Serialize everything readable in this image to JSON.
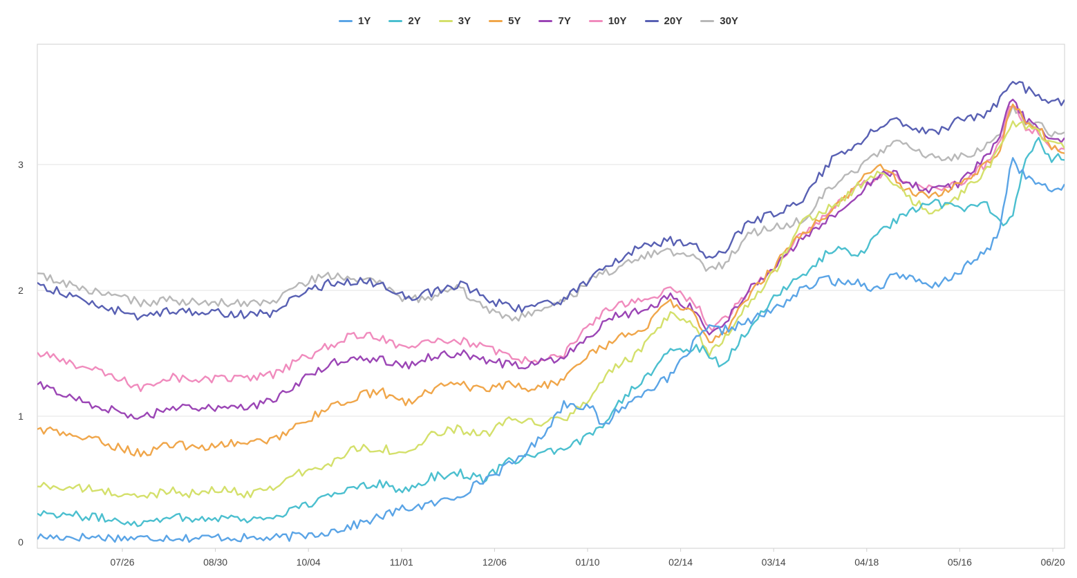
{
  "chart_data": {
    "type": "line",
    "x_ticks": [
      "07/26",
      "08/30",
      "10/04",
      "11/01",
      "12/06",
      "01/10",
      "02/14",
      "03/14",
      "04/18",
      "05/16",
      "06/20"
    ],
    "y_ticks": [
      "0",
      "1",
      "2",
      "3"
    ],
    "ylim": [
      0,
      3.9
    ],
    "grid": "horizontal",
    "legend_position": "top-center",
    "x_knots": [
      0,
      4,
      8,
      10,
      12,
      14,
      16,
      18,
      20,
      22,
      24,
      26,
      28,
      30,
      32,
      34,
      36,
      38,
      40,
      42,
      43,
      44,
      45,
      46,
      48,
      50,
      51,
      52,
      54,
      56,
      58,
      60,
      61,
      62,
      64,
      65,
      66,
      68,
      70,
      72,
      73,
      74,
      75,
      76,
      77,
      78
    ],
    "series": [
      {
        "name": "1Y",
        "color": "#5aa4e6",
        "values": [
          0.04,
          0.04,
          0.03,
          0.04,
          0.03,
          0.04,
          0.03,
          0.03,
          0.05,
          0.08,
          0.13,
          0.2,
          0.27,
          0.3,
          0.37,
          0.5,
          0.62,
          0.8,
          1.1,
          1.08,
          0.9,
          1.05,
          1.1,
          1.2,
          1.3,
          1.6,
          1.7,
          1.68,
          1.75,
          1.85,
          2.0,
          2.1,
          2.05,
          2.08,
          2.0,
          2.15,
          2.1,
          2.02,
          2.15,
          2.3,
          2.45,
          3.05,
          2.9,
          2.85,
          2.78,
          2.85
        ]
      },
      {
        "name": "2Y",
        "color": "#4bbfcf",
        "values": [
          0.24,
          0.2,
          0.15,
          0.21,
          0.18,
          0.2,
          0.18,
          0.2,
          0.28,
          0.35,
          0.45,
          0.47,
          0.4,
          0.52,
          0.55,
          0.5,
          0.65,
          0.7,
          0.72,
          0.85,
          0.95,
          1.1,
          1.2,
          1.3,
          1.5,
          1.55,
          1.5,
          1.4,
          1.7,
          1.95,
          2.1,
          2.3,
          2.35,
          2.25,
          2.45,
          2.55,
          2.6,
          2.7,
          2.65,
          2.7,
          2.55,
          2.55,
          3.05,
          3.2,
          3.05,
          3.05
        ]
      },
      {
        "name": "3Y",
        "color": "#d4e06b",
        "values": [
          0.45,
          0.42,
          0.35,
          0.42,
          0.38,
          0.42,
          0.38,
          0.45,
          0.55,
          0.6,
          0.75,
          0.75,
          0.7,
          0.85,
          0.9,
          0.85,
          0.97,
          0.95,
          0.97,
          1.15,
          1.3,
          1.4,
          1.45,
          1.55,
          1.8,
          1.7,
          1.5,
          1.6,
          1.9,
          2.15,
          2.55,
          2.65,
          2.7,
          2.8,
          2.95,
          2.85,
          2.75,
          2.6,
          2.75,
          2.95,
          3.1,
          3.35,
          3.3,
          3.25,
          3.18,
          3.15
        ]
      },
      {
        "name": "5Y",
        "color": "#f0a64a",
        "values": [
          0.9,
          0.82,
          0.7,
          0.78,
          0.75,
          0.78,
          0.78,
          0.82,
          0.95,
          1.05,
          1.15,
          1.2,
          1.1,
          1.22,
          1.25,
          1.2,
          1.25,
          1.22,
          1.3,
          1.5,
          1.55,
          1.62,
          1.65,
          1.7,
          1.9,
          1.8,
          1.6,
          1.65,
          1.95,
          2.2,
          2.45,
          2.6,
          2.7,
          2.82,
          3.0,
          2.9,
          2.8,
          2.75,
          2.85,
          3.0,
          3.1,
          3.5,
          3.35,
          3.3,
          3.15,
          3.12
        ]
      },
      {
        "name": "7Y",
        "color": "#9b45b5",
        "values": [
          1.25,
          1.1,
          0.98,
          1.08,
          1.05,
          1.08,
          1.08,
          1.12,
          1.28,
          1.4,
          1.48,
          1.45,
          1.4,
          1.48,
          1.5,
          1.45,
          1.4,
          1.42,
          1.48,
          1.65,
          1.75,
          1.8,
          1.82,
          1.85,
          1.95,
          1.85,
          1.65,
          1.72,
          2.0,
          2.2,
          2.4,
          2.55,
          2.65,
          2.75,
          2.9,
          2.95,
          2.85,
          2.8,
          2.85,
          3.05,
          3.2,
          3.55,
          3.35,
          3.3,
          3.2,
          3.18
        ]
      },
      {
        "name": "10Y",
        "color": "#f08bbd",
        "values": [
          1.5,
          1.38,
          1.22,
          1.32,
          1.28,
          1.3,
          1.3,
          1.33,
          1.45,
          1.55,
          1.65,
          1.62,
          1.55,
          1.62,
          1.6,
          1.55,
          1.45,
          1.45,
          1.5,
          1.72,
          1.82,
          1.88,
          1.9,
          1.92,
          2.0,
          1.9,
          1.7,
          1.75,
          2.0,
          2.18,
          2.45,
          2.6,
          2.7,
          2.8,
          2.92,
          2.95,
          2.85,
          2.8,
          2.85,
          3.0,
          3.15,
          3.5,
          3.3,
          3.25,
          3.15,
          3.1
        ]
      },
      {
        "name": "20Y",
        "color": "#5860b3",
        "values": [
          2.05,
          1.9,
          1.78,
          1.85,
          1.82,
          1.82,
          1.8,
          1.82,
          1.98,
          2.05,
          2.08,
          2.05,
          1.95,
          1.98,
          2.05,
          1.95,
          1.85,
          1.88,
          1.92,
          2.1,
          2.2,
          2.22,
          2.3,
          2.35,
          2.4,
          2.35,
          2.25,
          2.3,
          2.55,
          2.6,
          2.7,
          3.0,
          3.1,
          3.15,
          3.3,
          3.35,
          3.3,
          3.25,
          3.35,
          3.4,
          3.5,
          3.7,
          3.6,
          3.55,
          3.5,
          3.5
        ]
      },
      {
        "name": "30Y",
        "color": "#b8b8b8",
        "values": [
          2.12,
          2.0,
          1.9,
          1.92,
          1.9,
          1.9,
          1.9,
          1.92,
          2.05,
          2.12,
          2.1,
          2.05,
          1.92,
          1.95,
          2.02,
          1.85,
          1.75,
          1.85,
          1.9,
          2.08,
          2.15,
          2.15,
          2.22,
          2.28,
          2.3,
          2.25,
          2.15,
          2.2,
          2.45,
          2.5,
          2.55,
          2.8,
          2.9,
          2.95,
          3.1,
          3.2,
          3.15,
          3.05,
          3.05,
          3.15,
          3.25,
          3.45,
          3.35,
          3.32,
          3.25,
          3.25
        ]
      }
    ]
  }
}
